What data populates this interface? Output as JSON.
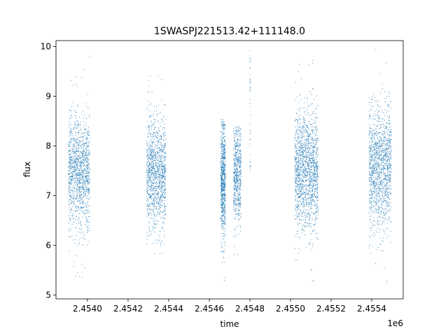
{
  "chart_data": {
    "type": "scatter",
    "title": "1SWASPJ221513.42+111148.0",
    "xlabel": "time",
    "ylabel": "flux",
    "x_offset_label": "1e6",
    "xlim": [
      2453845,
      2455555
    ],
    "ylim": [
      4.92,
      10.12
    ],
    "x_ticks": [
      2453960,
      2454140,
      2454320,
      2454500,
      2454680,
      2454860,
      2455040,
      2455220,
      2455400
    ],
    "x_tick_labels": [
      "2.4540",
      "2.4542",
      "2.4544",
      "2.4546",
      "2.4548",
      "2.4550",
      "2.4552",
      "2.4554"
    ],
    "x_tick_values": [
      2454000,
      2454200,
      2454400,
      2454600,
      2454800,
      2455000,
      2455200,
      2455400
    ],
    "y_ticks": [
      5,
      6,
      7,
      8,
      9,
      10
    ],
    "y_tick_labels": [
      "5",
      "6",
      "7",
      "8",
      "9",
      "10"
    ],
    "grid": false,
    "marker_color": "#1f77b4",
    "series": [
      {
        "clusters": [
          {
            "x_start": 2453905,
            "x_end": 2454010,
            "y_center": 7.45,
            "y_spread": 0.55,
            "count": 1300,
            "y_min": 5.15,
            "y_max": 10.0
          },
          {
            "x_start": 2454290,
            "x_end": 2454385,
            "y_center": 7.45,
            "y_spread": 0.55,
            "count": 1250,
            "y_min": 5.75,
            "y_max": 9.6
          },
          {
            "x_start": 2454655,
            "x_end": 2454678,
            "y_center": 7.3,
            "y_spread": 0.6,
            "count": 800,
            "y_min": 5.2,
            "y_max": 8.55
          },
          {
            "x_start": 2454718,
            "x_end": 2454755,
            "y_center": 7.45,
            "y_spread": 0.5,
            "count": 600,
            "y_min": 5.6,
            "y_max": 8.4
          },
          {
            "x_start": 2454798,
            "x_end": 2454802,
            "y_center": 8.7,
            "y_spread": 0.9,
            "count": 40,
            "y_min": 7.5,
            "y_max": 9.95
          },
          {
            "x_start": 2455020,
            "x_end": 2455135,
            "y_center": 7.5,
            "y_spread": 0.6,
            "count": 1600,
            "y_min": 5.15,
            "y_max": 10.0
          },
          {
            "x_start": 2455385,
            "x_end": 2455495,
            "y_center": 7.55,
            "y_spread": 0.6,
            "count": 1400,
            "y_min": 5.2,
            "y_max": 10.0
          }
        ]
      }
    ]
  }
}
